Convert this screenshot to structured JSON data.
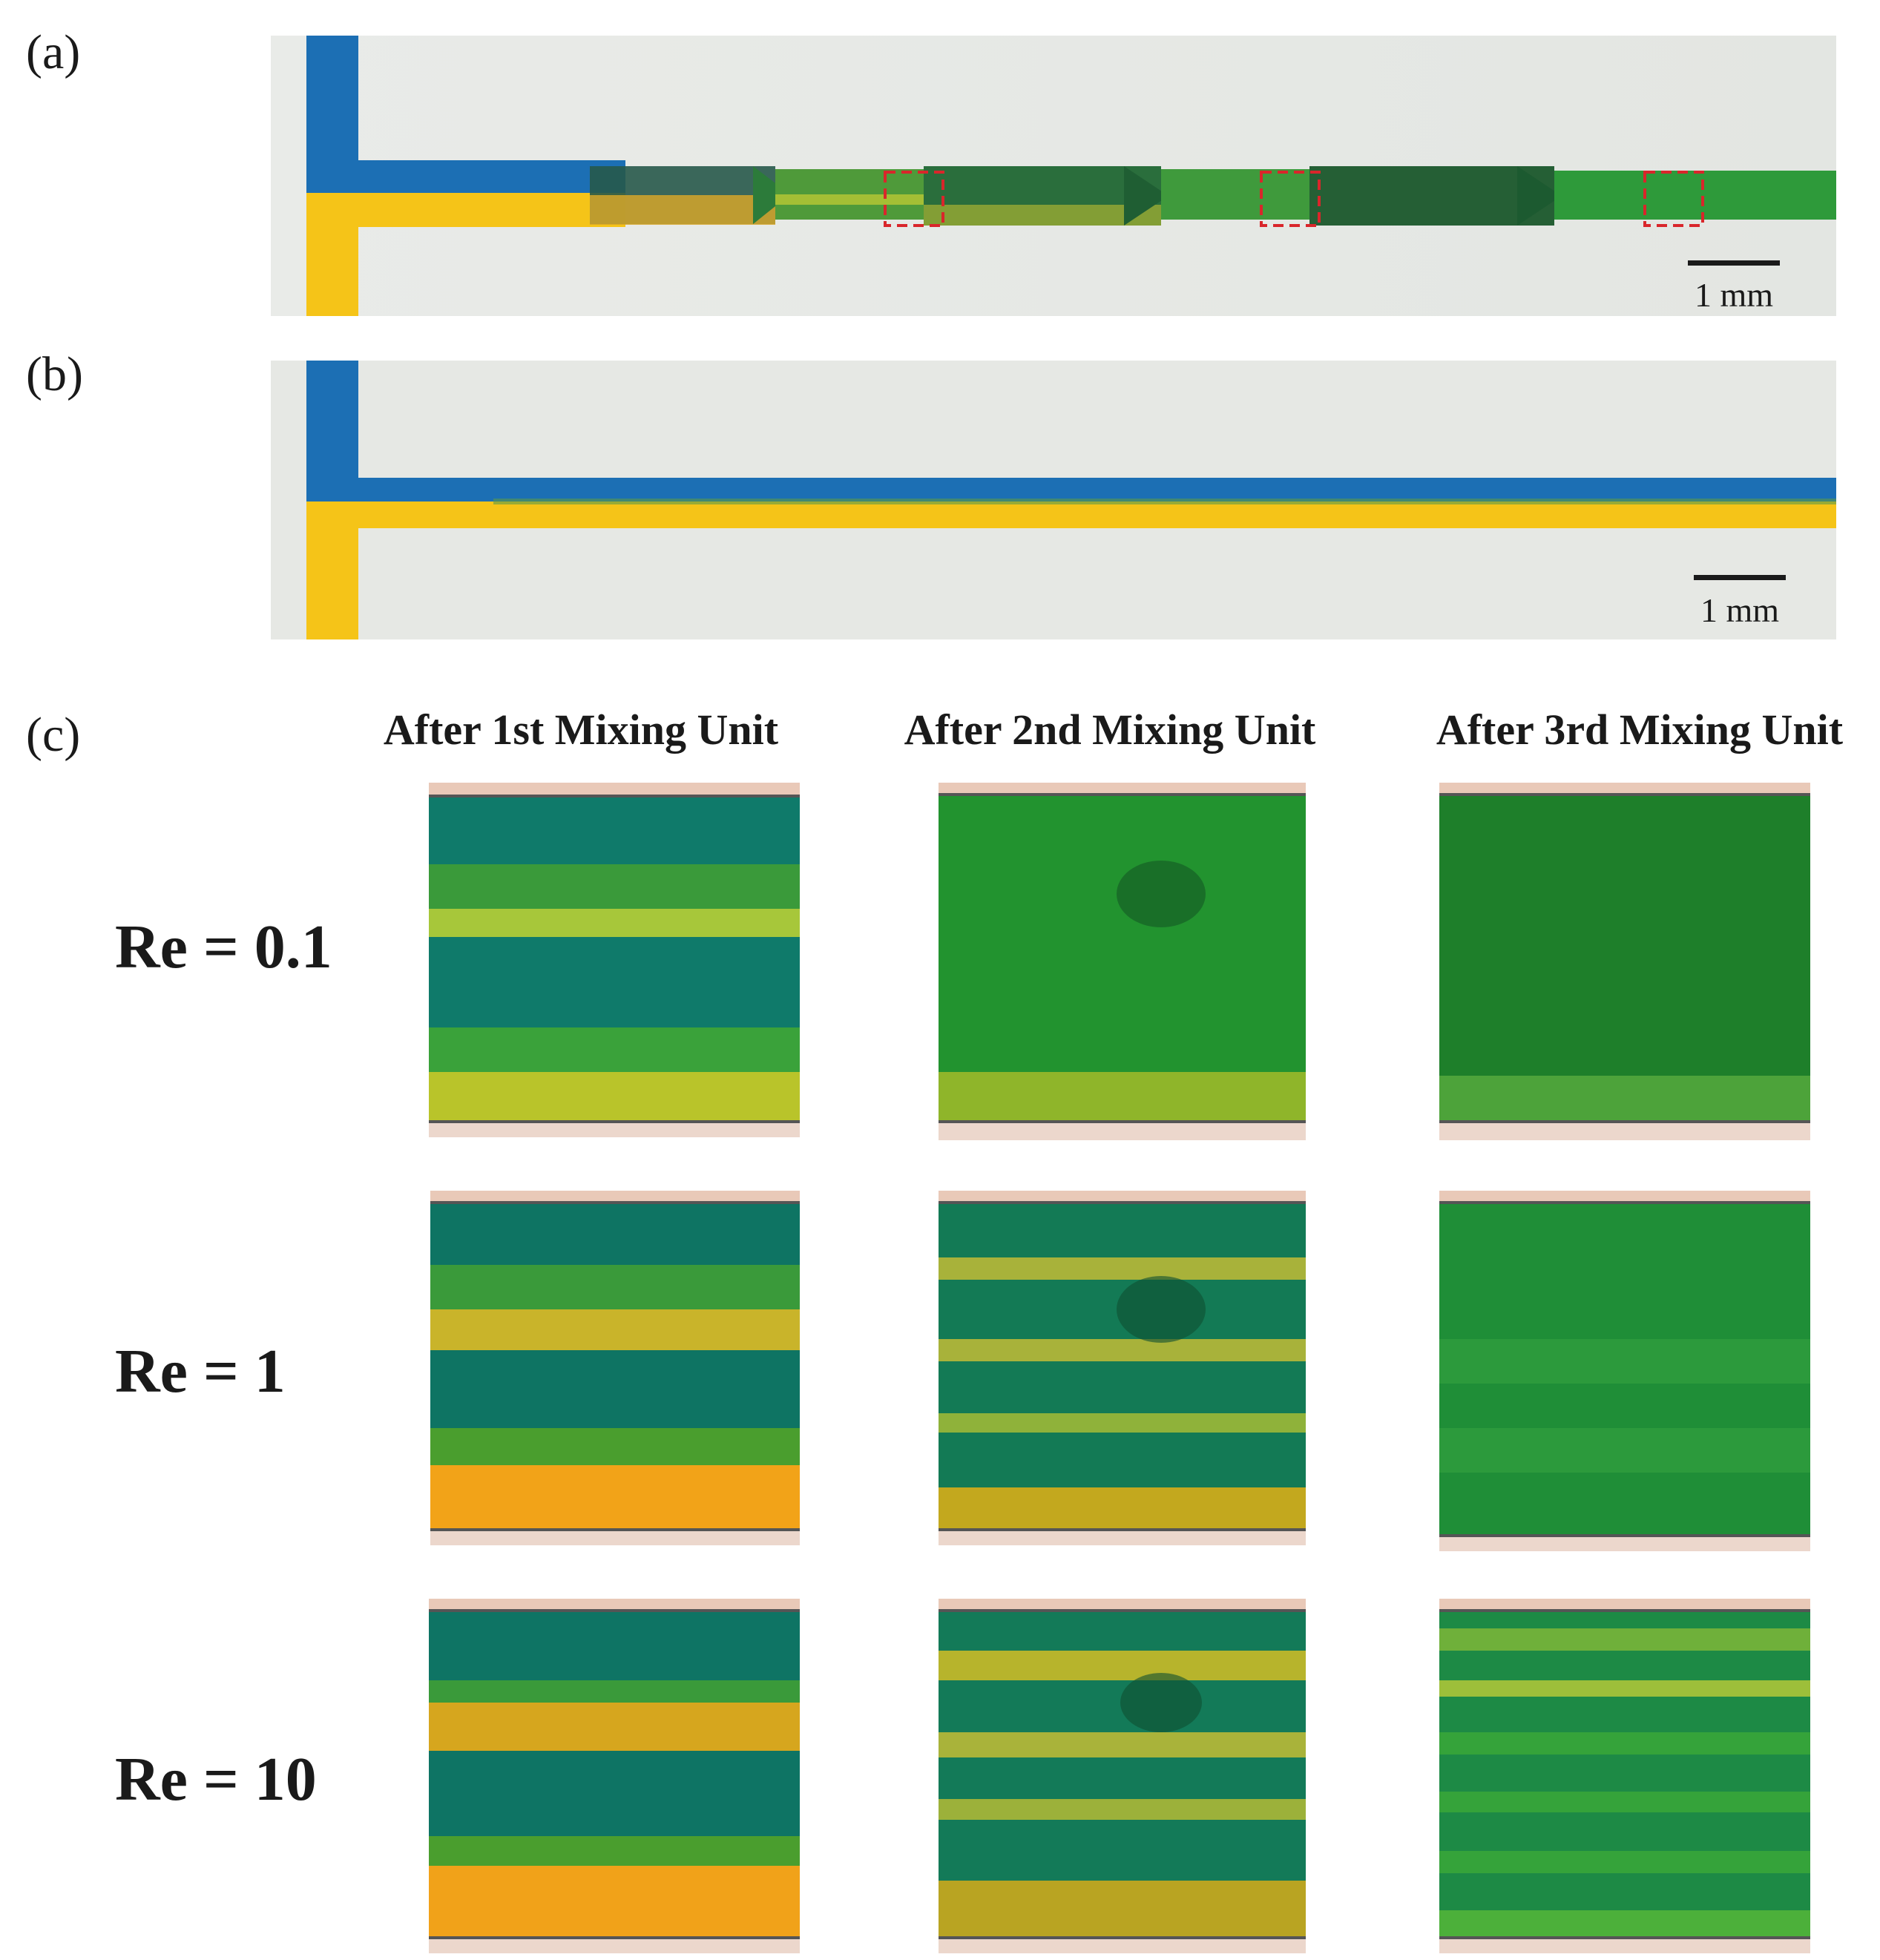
{
  "panel_a": {
    "label": "(a)",
    "scale_bar": "1 mm"
  },
  "panel_b": {
    "label": "(b)",
    "scale_bar": "1 mm"
  },
  "panel_c": {
    "label": "(c)",
    "columns": [
      "After 1st Mixing Unit",
      "After 2nd Mixing Unit",
      "After 3rd Mixing Unit"
    ],
    "rows": [
      "Re = 0.1",
      "Re = 1",
      "Re = 10"
    ]
  },
  "colors": {
    "blue_dye": "#1c6fb4",
    "yellow_dye": "#f5c418",
    "mixed_green": "#2f8f2f",
    "roi_box": "#d9262b",
    "background": "#e6e8e4"
  }
}
